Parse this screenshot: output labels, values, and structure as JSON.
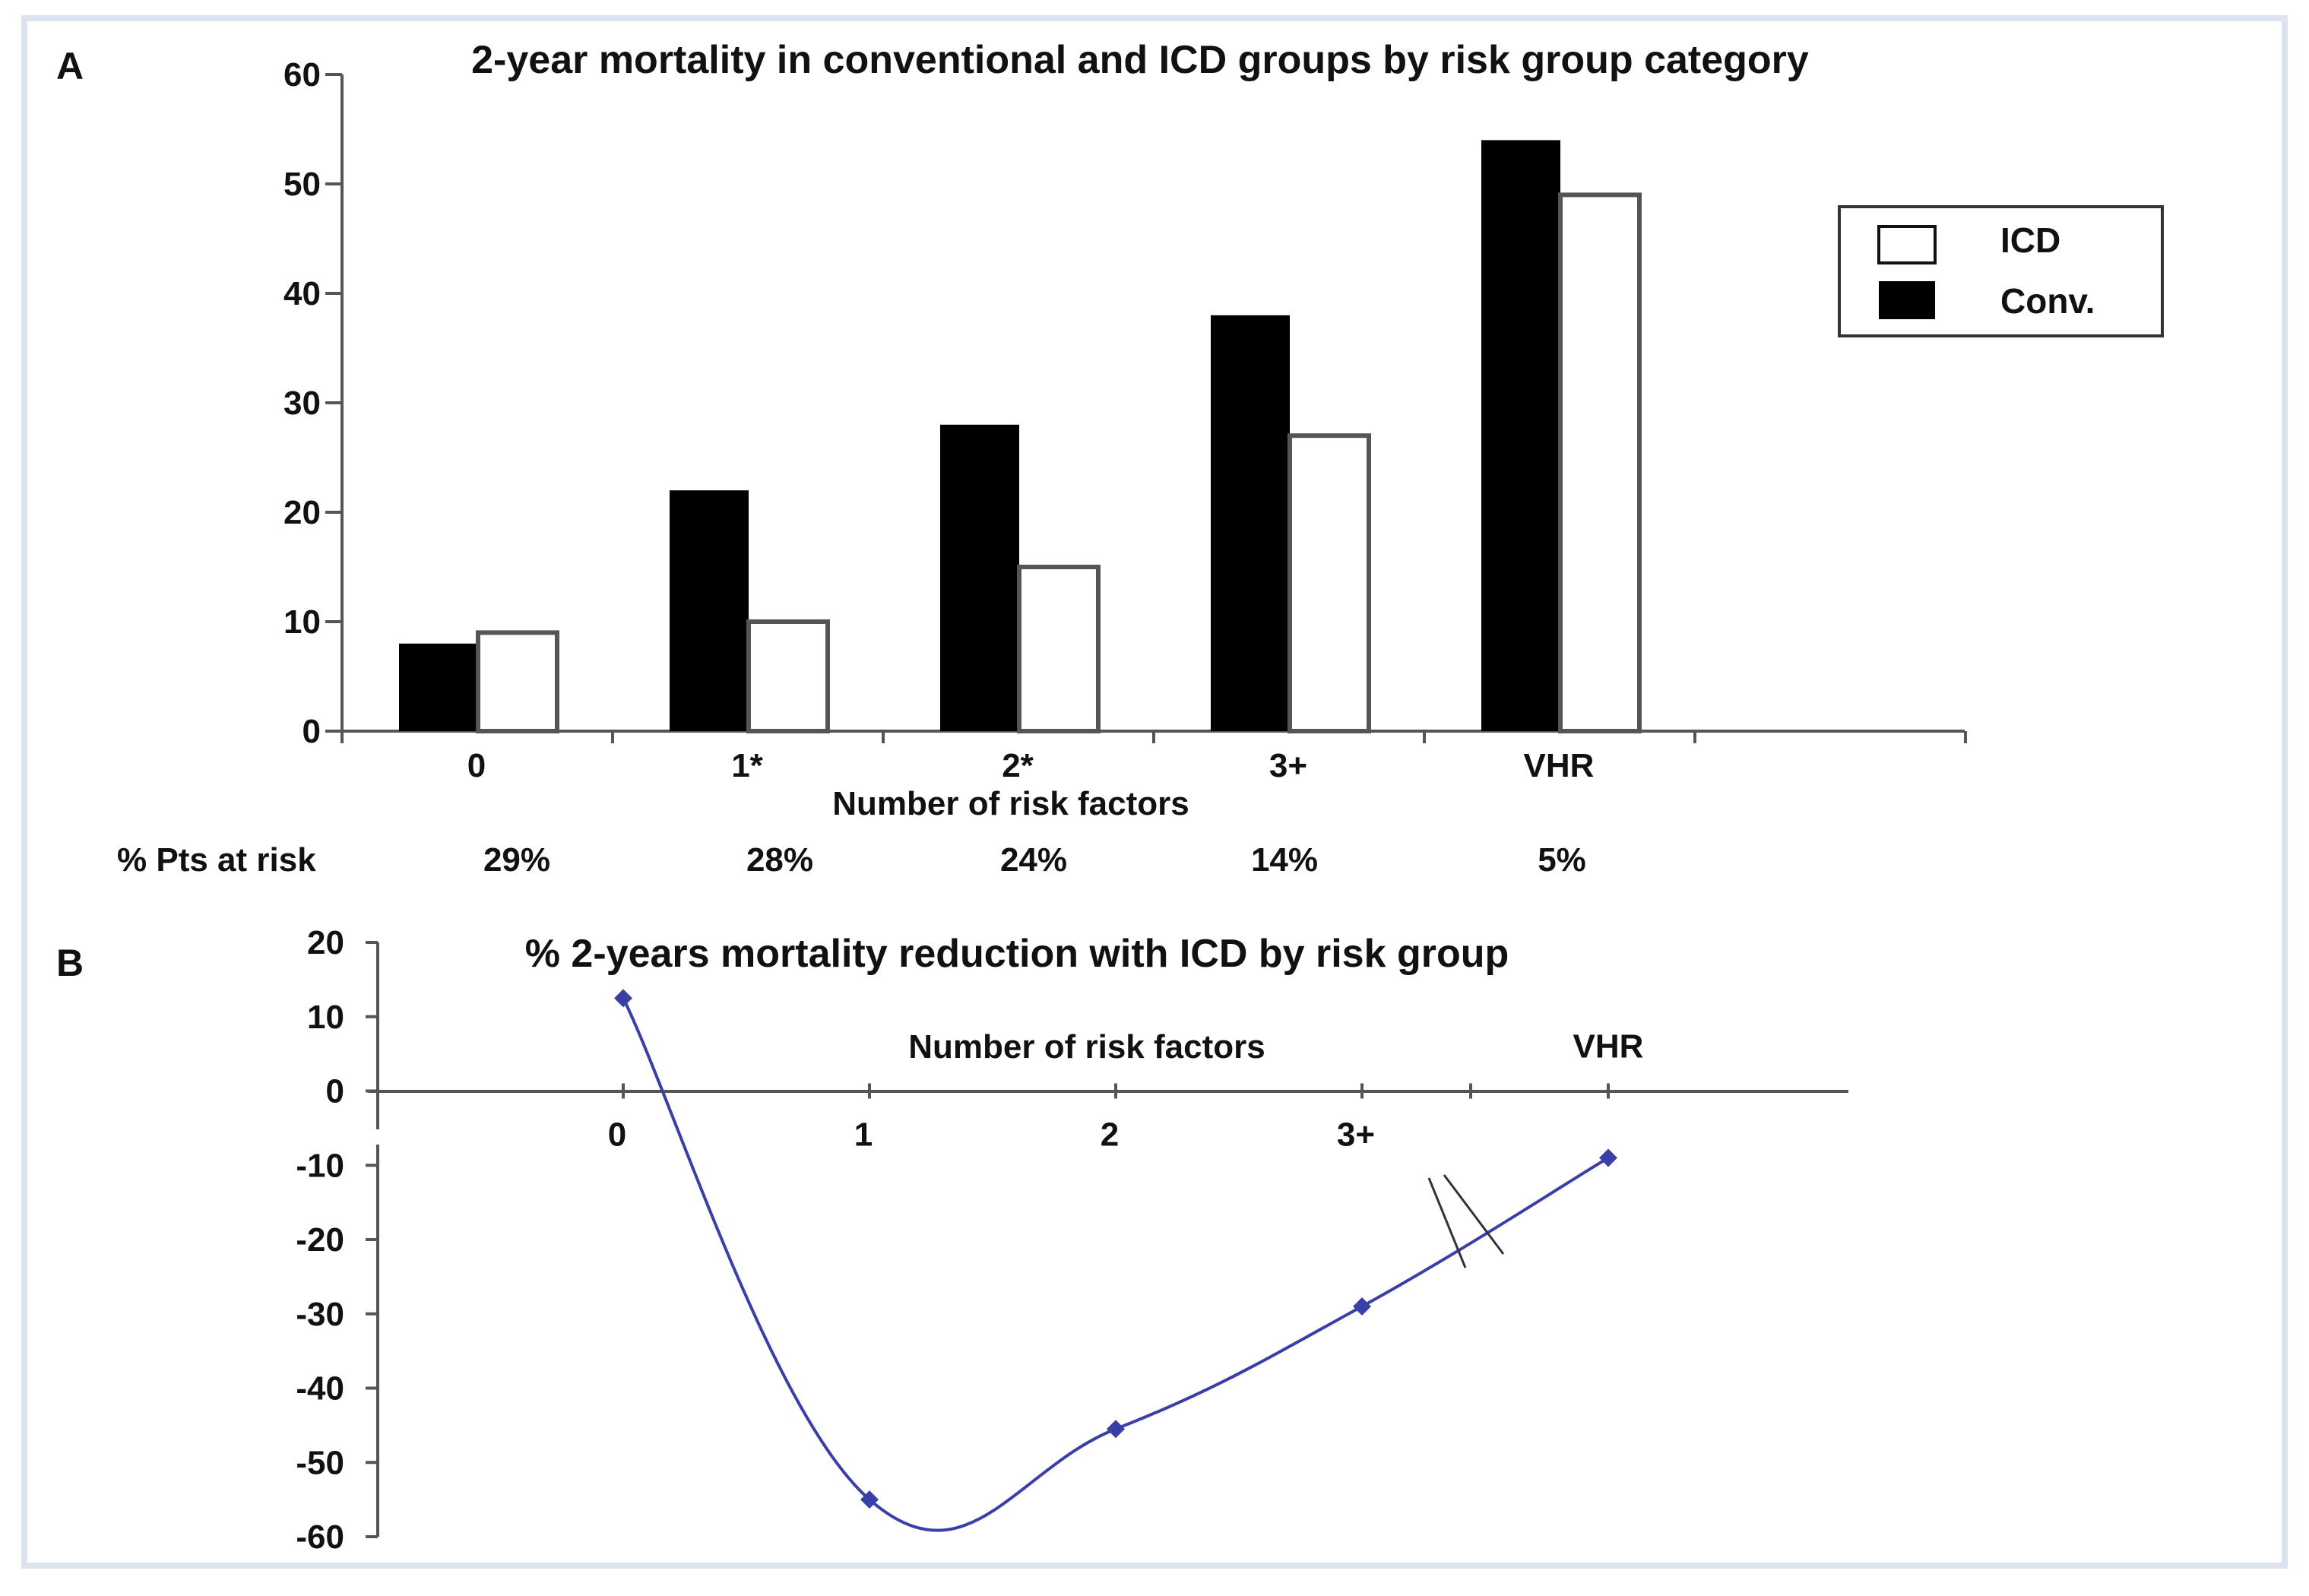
{
  "colors": {
    "frame": "#dde3ee",
    "conv": "#000000",
    "icd_fill": "#ffffff",
    "icd_edge": "#555555",
    "line": "#3a3fa8",
    "axis": "#555555"
  },
  "panel_a": {
    "label": "A"
  },
  "panel_b": {
    "label": "B"
  },
  "pts_at_risk": {
    "label": "% Pts at risk",
    "values": [
      "29%",
      "28%",
      "24%",
      "14%",
      "5%"
    ]
  },
  "chart_data": [
    {
      "type": "bar",
      "title": "2-year mortality in conventional and ICD groups by risk group category",
      "xlabel": "Number of risk factors",
      "ylabel": "",
      "categories": [
        "0",
        "1*",
        "2*",
        "3+",
        "VHR"
      ],
      "ylim": [
        0,
        60
      ],
      "yticks": [
        "0",
        "10",
        "20",
        "30",
        "40",
        "50",
        "60"
      ],
      "series": [
        {
          "name": "Conv.",
          "values": [
            8,
            22,
            28,
            38,
            54
          ]
        },
        {
          "name": "ICD",
          "values": [
            9,
            10,
            15,
            27,
            49
          ]
        }
      ],
      "legend": [
        "ICD",
        "Conv."
      ],
      "legend_position": "top-right"
    },
    {
      "type": "line",
      "title": "% 2-years mortality reduction with ICD by risk group",
      "xlabel": "Number of risk factors",
      "categories": [
        "0",
        "1",
        "2",
        "3+",
        "VHR"
      ],
      "values": [
        12.5,
        -55,
        -45.5,
        -29,
        -9
      ],
      "ylim": [
        -60,
        20
      ],
      "yticks": [
        "20",
        "10",
        "0",
        "-10",
        "-20",
        "-30",
        "-40",
        "-50",
        "-60"
      ],
      "grid": false,
      "axis_break_between": [
        "3+",
        "VHR"
      ]
    }
  ]
}
